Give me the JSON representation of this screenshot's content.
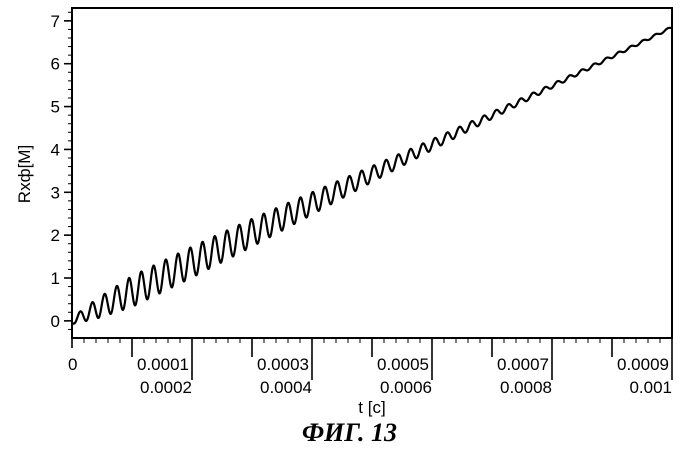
{
  "caption": "ФИГ. 13",
  "chart_data": {
    "type": "line",
    "title": "",
    "xlabel": "t [c]",
    "ylabel": "Rxф[M]",
    "xlim": [
      0,
      0.001
    ],
    "ylim": [
      -0.4,
      7.3
    ],
    "grid": false,
    "x_ticks_upper": [
      "0",
      "0.0001",
      "0.0003",
      "0.0005",
      "0.0007",
      "0.0009"
    ],
    "x_ticks_upper_values": [
      0,
      0.0001,
      0.0003,
      0.0005,
      0.0007,
      0.0009
    ],
    "x_ticks_lower": [
      "0.0002",
      "0.0004",
      "0.0006",
      "0.0008",
      "0.001"
    ],
    "x_ticks_lower_values": [
      0.0002,
      0.0004,
      0.0006,
      0.0008,
      0.001
    ],
    "y_ticks": [
      "0",
      "1",
      "2",
      "3",
      "4",
      "5",
      "6",
      "7"
    ],
    "y_tick_values": [
      0,
      1,
      2,
      3,
      4,
      5,
      6,
      7
    ],
    "series": [
      {
        "color": "#000000",
        "trend": {
          "x": [
            0,
            0.001
          ],
          "y": [
            0.0,
            6.85
          ]
        },
        "oscillation": {
          "period": 2.04e-05,
          "first_peak": 1.35e-05,
          "amplitude_envelope": {
            "x": [
              0,
              4e-05,
              0.0001,
              0.0002,
              0.0003,
              0.0004,
              0.0005,
              0.0006,
              0.0007,
              0.0008,
              0.0009,
              0.001
            ],
            "y": [
              0.15,
              0.45,
              0.72,
              0.72,
              0.65,
              0.52,
              0.37,
              0.25,
              0.16,
              0.1,
              0.07,
              0.05
            ]
          }
        }
      }
    ]
  }
}
